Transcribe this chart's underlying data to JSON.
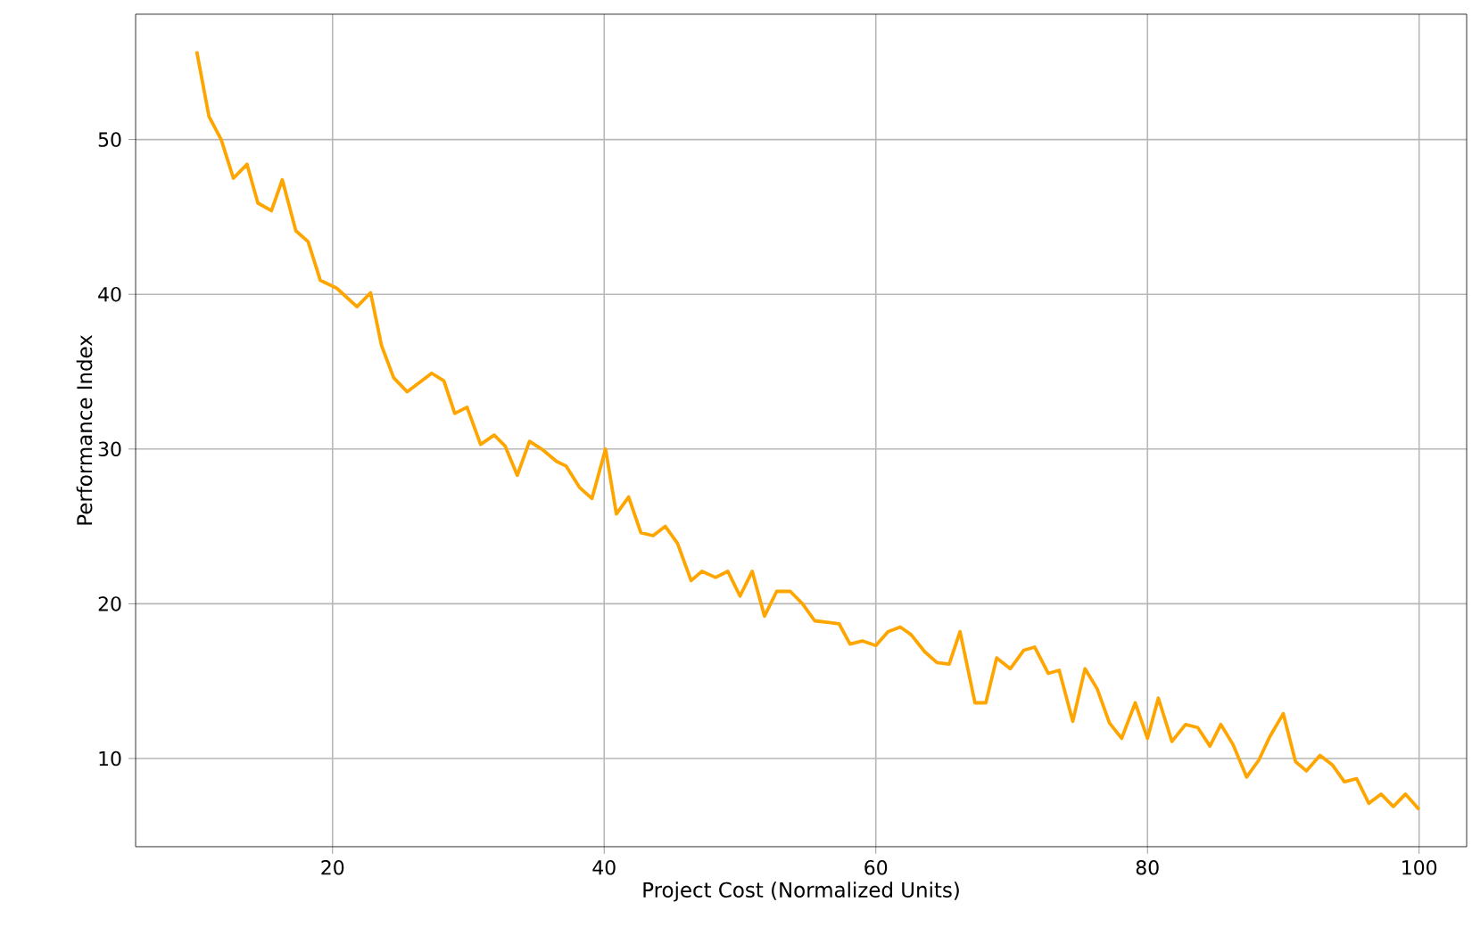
{
  "chart_data": {
    "type": "line",
    "xlabel": "Project Cost (Normalized Units)",
    "ylabel": "Performance Index",
    "x": [
      10.0,
      10.9,
      11.8,
      12.7,
      13.7,
      14.5,
      15.5,
      16.3,
      17.3,
      18.2,
      19.1,
      20.3,
      21.8,
      22.8,
      23.6,
      24.5,
      25.5,
      27.3,
      28.2,
      29.0,
      29.9,
      30.9,
      31.9,
      32.7,
      33.6,
      34.5,
      35.4,
      36.5,
      37.2,
      38.2,
      39.1,
      40.1,
      40.9,
      41.8,
      42.7,
      43.6,
      44.5,
      45.4,
      46.4,
      47.2,
      48.2,
      49.1,
      50.0,
      50.9,
      51.8,
      52.7,
      53.7,
      54.6,
      55.5,
      56.4,
      57.3,
      58.1,
      59.0,
      60.0,
      60.9,
      61.8,
      62.6,
      63.6,
      64.5,
      65.4,
      66.2,
      67.3,
      68.1,
      68.9,
      69.9,
      70.9,
      71.7,
      72.7,
      73.5,
      74.5,
      75.4,
      76.3,
      77.2,
      78.1,
      79.1,
      80.0,
      80.8,
      81.8,
      82.8,
      83.7,
      84.6,
      85.4,
      86.3,
      87.3,
      88.2,
      89.0,
      90.0,
      90.9,
      91.7,
      92.7,
      93.6,
      94.5,
      95.4,
      96.3,
      97.2,
      98.1,
      99.0,
      100.0
    ],
    "series": [
      {
        "color": "#ffa500",
        "values": [
          55.7,
          51.5,
          50.0,
          47.5,
          48.4,
          45.9,
          45.4,
          47.4,
          44.1,
          43.4,
          40.9,
          40.4,
          39.2,
          40.1,
          36.7,
          34.6,
          33.7,
          34.9,
          34.4,
          32.3,
          32.7,
          30.3,
          30.9,
          30.2,
          28.3,
          30.5,
          30.0,
          29.2,
          28.9,
          27.5,
          26.8,
          30.0,
          25.8,
          26.9,
          24.6,
          24.4,
          25.0,
          23.9,
          21.5,
          22.1,
          21.7,
          22.1,
          20.5,
          22.1,
          19.2,
          20.8,
          20.8,
          20.0,
          18.9,
          18.8,
          18.7,
          17.4,
          17.6,
          17.3,
          18.2,
          18.5,
          18.0,
          16.9,
          16.2,
          16.1,
          18.2,
          13.6,
          13.6,
          16.5,
          15.8,
          17.0,
          17.2,
          15.5,
          15.7,
          12.4,
          15.8,
          14.5,
          12.3,
          11.3,
          13.6,
          11.3,
          13.9,
          11.1,
          12.2,
          12.0,
          10.8,
          12.2,
          10.9,
          8.8,
          9.9,
          11.4,
          12.9,
          9.8,
          9.2,
          10.2,
          9.6,
          8.5,
          8.7,
          7.1,
          7.7,
          6.9,
          7.7,
          6.7
        ]
      }
    ],
    "xlim": [
      5.5,
      103.5
    ],
    "ylim": [
      4.3,
      58.1
    ],
    "xticks": [
      20,
      40,
      60,
      80,
      100
    ],
    "yticks": [
      10,
      20,
      30,
      40,
      50
    ],
    "grid": true,
    "line_style": "solid",
    "marker": "none"
  }
}
